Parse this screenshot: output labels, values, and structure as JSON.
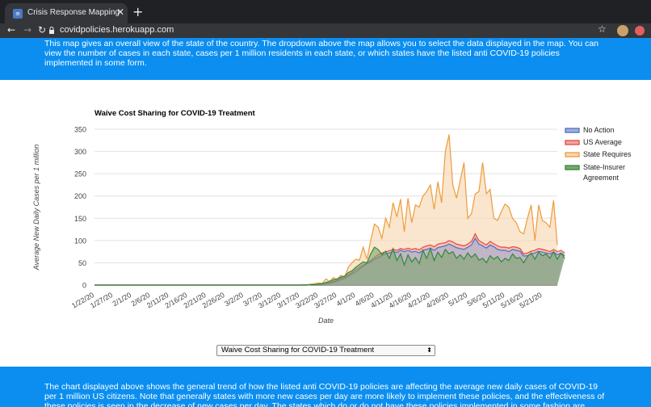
{
  "browser": {
    "tab_title": "Crisis Response Mapping",
    "tab_favicon_glyph": "≡",
    "close_glyph": "✕",
    "new_tab_glyph": "+",
    "url": "covidpolicies.herokuapp.com",
    "icons": [
      "back-icon",
      "forward-icon",
      "reload-icon",
      "lock-icon",
      "star-icon",
      "extension-icon",
      "profile-icon"
    ]
  },
  "intro_text": "This map gives an overall view of the state of the country. The dropdown above the map allows you to select the data displayed in the map. You can view the number of cases in each state, cases per 1 million residents in each state, or which states have the listed anti COVID-19 policies implemented in some form.",
  "selector": {
    "value": "Waive Cost Sharing for COVID-19 Treatment",
    "arrows": "⬍"
  },
  "outro_text": "The chart displayed above shows the general trend of how the listed anti COVID-19 policies are affecting the average new daily cases of COVID-19 per 1 million US citizens. Note that generally states with more new cases per day are more likely to implement these policies, and the effectiveness of these policies is seen in the decrease of new cases per day. The states which do or do not have these policies implemented in some fashion are",
  "chart_data": {
    "type": "area",
    "title": "Waive Cost Sharing for COVID-19 Treatment",
    "xlabel": "Date",
    "ylabel": "Average New Daily Cases per 1 million",
    "ylim": [
      0,
      350
    ],
    "yticks": [
      0,
      50,
      100,
      150,
      200,
      250,
      300,
      350
    ],
    "grid": true,
    "legend_position": "right",
    "x_tick_labels": [
      "1/22/20",
      "1/27/20",
      "2/1/20",
      "2/6/20",
      "2/11/20",
      "2/16/20",
      "2/21/20",
      "2/26/20",
      "3/2/20",
      "3/7/20",
      "3/12/20",
      "3/17/20",
      "3/22/20",
      "3/27/20",
      "4/1/20",
      "4/6/20",
      "4/11/20",
      "4/16/20",
      "4/21/20",
      "4/26/20",
      "5/1/20",
      "5/6/20",
      "5/11/20",
      "5/16/20",
      "5/21/20"
    ],
    "x_start": "1/22/20",
    "series": [
      {
        "name": "State Requires",
        "color": "#ee9c3a",
        "fill": "#f8d8b3",
        "values": [
          0,
          0,
          0,
          0,
          0,
          0,
          0,
          0,
          0,
          0,
          0,
          0,
          0,
          0,
          0,
          0,
          0,
          0,
          0,
          0,
          0,
          0,
          0,
          0,
          0,
          0,
          0,
          0,
          0,
          0,
          0,
          0,
          0,
          0,
          0,
          0,
          0,
          0,
          0,
          0,
          0,
          0,
          0,
          0,
          0,
          0,
          0,
          0,
          0,
          0,
          0,
          0,
          0,
          0,
          0,
          0,
          1,
          1,
          2,
          3,
          5,
          4,
          14,
          8,
          17,
          12,
          22,
          18,
          40,
          50,
          58,
          56,
          85,
          58,
          100,
          137,
          130,
          105,
          150,
          130,
          185,
          153,
          193,
          120,
          195,
          140,
          180,
          175,
          200,
          210,
          225,
          170,
          232,
          185,
          300,
          338,
          225,
          195,
          235,
          275,
          150,
          160,
          205,
          210,
          275,
          205,
          215,
          150,
          145,
          165,
          182,
          175,
          150,
          140,
          120,
          115,
          150,
          180,
          100,
          180,
          145,
          140,
          130,
          190,
          90
        ]
      },
      {
        "name": "US Average",
        "color": "#e8473f",
        "fill": "#f0a6a0",
        "values": [
          0,
          0,
          0,
          0,
          0,
          0,
          0,
          0,
          0,
          0,
          0,
          0,
          0,
          0,
          0,
          0,
          0,
          0,
          0,
          0,
          0,
          0,
          0,
          0,
          0,
          0,
          0,
          0,
          0,
          0,
          0,
          0,
          0,
          0,
          0,
          0,
          0,
          0,
          0,
          0,
          0,
          0,
          0,
          0,
          0,
          0,
          0,
          0,
          0,
          0,
          0,
          0,
          0,
          0,
          0,
          0,
          0,
          0,
          1,
          1,
          2,
          2,
          4,
          5,
          8,
          11,
          15,
          18,
          23,
          28,
          35,
          40,
          45,
          50,
          55,
          62,
          68,
          72,
          75,
          77,
          80,
          78,
          82,
          80,
          83,
          80,
          82,
          79,
          85,
          88,
          90,
          86,
          92,
          94,
          95,
          100,
          97,
          92,
          90,
          88,
          92,
          98,
          115,
          100,
          95,
          90,
          98,
          93,
          88,
          85,
          85,
          83,
          86,
          85,
          82,
          70,
          72,
          76,
          78,
          82,
          80,
          78,
          75,
          80,
          75,
          78,
          72
        ]
      },
      {
        "name": "No Action",
        "color": "#4a6fc7",
        "fill": "#9faed6",
        "values": [
          0,
          0,
          0,
          0,
          0,
          0,
          0,
          0,
          0,
          0,
          0,
          0,
          0,
          0,
          0,
          0,
          0,
          0,
          0,
          0,
          0,
          0,
          0,
          0,
          0,
          0,
          0,
          0,
          0,
          0,
          0,
          0,
          0,
          0,
          0,
          0,
          0,
          0,
          0,
          0,
          0,
          0,
          0,
          0,
          0,
          0,
          0,
          0,
          0,
          0,
          0,
          0,
          0,
          0,
          0,
          0,
          0,
          0,
          1,
          1,
          2,
          2,
          3,
          4,
          6,
          9,
          12,
          15,
          20,
          25,
          30,
          36,
          42,
          48,
          52,
          58,
          62,
          66,
          70,
          72,
          75,
          73,
          78,
          75,
          78,
          74,
          76,
          72,
          78,
          80,
          83,
          78,
          84,
          86,
          88,
          92,
          88,
          84,
          82,
          80,
          85,
          90,
          105,
          92,
          88,
          83,
          90,
          86,
          80,
          78,
          78,
          75,
          80,
          78,
          76,
          65,
          66,
          70,
          72,
          76,
          74,
          72,
          70,
          74,
          68,
          72,
          66
        ]
      },
      {
        "name": "State-Insurer Agreement",
        "color": "#2e8a3a",
        "fill": "#7fa56a",
        "values": [
          0,
          0,
          0,
          0,
          0,
          0,
          0,
          0,
          0,
          0,
          0,
          0,
          0,
          0,
          0,
          0,
          0,
          0,
          0,
          0,
          0,
          0,
          0,
          0,
          0,
          0,
          0,
          0,
          0,
          0,
          0,
          0,
          0,
          0,
          0,
          0,
          0,
          0,
          0,
          0,
          0,
          0,
          0,
          0,
          0,
          0,
          0,
          0,
          0,
          0,
          0,
          0,
          0,
          0,
          0,
          0,
          0,
          0,
          1,
          1,
          2,
          3,
          6,
          8,
          12,
          14,
          18,
          20,
          28,
          32,
          40,
          46,
          52,
          50,
          70,
          85,
          80,
          68,
          76,
          60,
          82,
          55,
          70,
          45,
          68,
          52,
          62,
          48,
          78,
          60,
          82,
          55,
          74,
          62,
          80,
          70,
          75,
          60,
          68,
          58,
          72,
          62,
          70,
          56,
          60,
          50,
          66,
          58,
          64,
          52,
          60,
          55,
          70,
          60,
          62,
          50,
          64,
          72,
          58,
          74,
          66,
          70,
          60,
          75,
          58,
          72,
          60
        ]
      }
    ]
  }
}
